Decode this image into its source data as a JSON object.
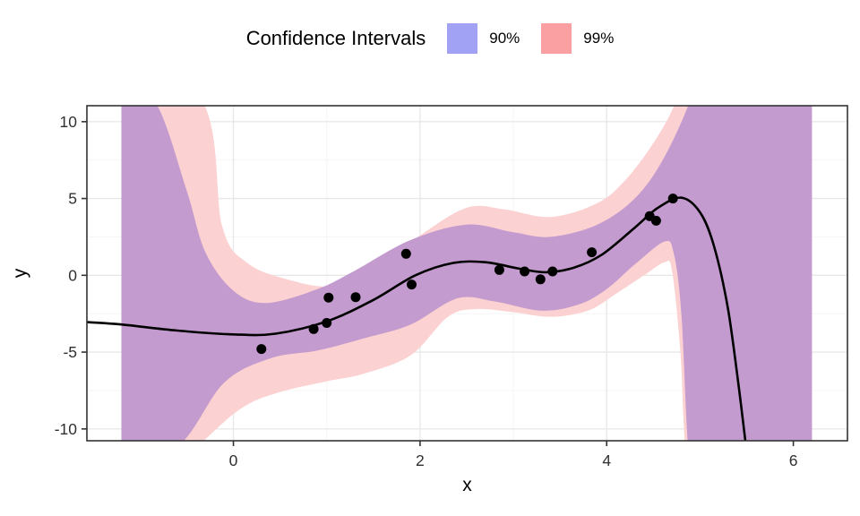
{
  "legend": {
    "title": "Confidence Intervals",
    "items": [
      {
        "label": "90%",
        "color": "#a2a2f5"
      },
      {
        "label": "99%",
        "color": "#fa9fa2"
      }
    ]
  },
  "colors": {
    "panel_border": "#333333",
    "grid_major": "#e8e8e8",
    "grid_minor": "#f4f4f4",
    "ribbon_99_fill": "#fbd1d1",
    "ribbon_90_fill": "#c49bcf",
    "curve": "#000000",
    "point": "#000000",
    "tick_mark": "#333333"
  },
  "chart_data": {
    "type": "line",
    "title": "Confidence Intervals",
    "xlabel": "x",
    "ylabel": "y",
    "xlim": [
      -1.57,
      6.58
    ],
    "ylim": [
      -10.77,
      11.04
    ],
    "x_ticks": [
      0,
      2,
      4,
      6
    ],
    "x_minor_ticks": [
      -1,
      1,
      3,
      5
    ],
    "y_ticks": [
      10,
      5,
      0,
      -5,
      -10
    ],
    "y_minor_ticks": [
      7.5,
      2.5,
      -2.5,
      -7.5
    ],
    "grid": true,
    "legend_position": "top",
    "points": [
      [
        0.3,
        -4.8
      ],
      [
        0.86,
        -3.5
      ],
      [
        1.0,
        -3.1
      ],
      [
        1.02,
        -1.45
      ],
      [
        1.31,
        -1.42
      ],
      [
        1.85,
        1.4
      ],
      [
        1.91,
        -0.6
      ],
      [
        2.85,
        0.35
      ],
      [
        3.12,
        0.25
      ],
      [
        3.29,
        -0.26
      ],
      [
        3.42,
        0.25
      ],
      [
        3.84,
        1.5
      ],
      [
        4.46,
        3.85
      ],
      [
        4.53,
        3.55
      ],
      [
        4.71,
        5.0
      ]
    ],
    "mean_curve": [
      [
        -1.57,
        -3.05
      ],
      [
        -1.2,
        -3.2
      ],
      [
        -0.6,
        -3.6
      ],
      [
        0.0,
        -3.85
      ],
      [
        0.45,
        -3.8
      ],
      [
        1.0,
        -3.0
      ],
      [
        1.5,
        -1.6
      ],
      [
        1.95,
        0.0
      ],
      [
        2.35,
        0.8
      ],
      [
        2.7,
        0.85
      ],
      [
        3.05,
        0.45
      ],
      [
        3.35,
        0.2
      ],
      [
        3.65,
        0.5
      ],
      [
        3.95,
        1.35
      ],
      [
        4.3,
        3.1
      ],
      [
        4.55,
        4.4
      ],
      [
        4.8,
        5.05
      ],
      [
        5.0,
        4.1
      ],
      [
        5.15,
        1.9
      ],
      [
        5.3,
        -2.2
      ],
      [
        5.42,
        -7.5
      ],
      [
        5.5,
        -11.5
      ]
    ],
    "band_90": {
      "label": "90%",
      "upper": [
        [
          -1.2,
          13.0
        ],
        [
          -0.82,
          11.1
        ],
        [
          -0.5,
          5.5
        ],
        [
          -0.3,
          1.5
        ],
        [
          0.0,
          -1.0
        ],
        [
          0.35,
          -1.8
        ],
        [
          0.9,
          -0.9
        ],
        [
          1.3,
          0.3
        ],
        [
          1.9,
          2.3
        ],
        [
          2.5,
          3.3
        ],
        [
          3.0,
          2.8
        ],
        [
          3.4,
          2.5
        ],
        [
          3.9,
          3.3
        ],
        [
          4.3,
          5.0
        ],
        [
          4.6,
          7.5
        ],
        [
          4.89,
          11.3
        ],
        [
          5.0,
          14.0
        ],
        [
          6.2,
          14.0
        ]
      ],
      "lower": [
        [
          -1.2,
          -14.0
        ],
        [
          -0.55,
          -10.9
        ],
        [
          -0.1,
          -7.0
        ],
        [
          0.4,
          -5.4
        ],
        [
          0.9,
          -4.9
        ],
        [
          1.4,
          -4.1
        ],
        [
          1.9,
          -3.2
        ],
        [
          2.4,
          -1.5
        ],
        [
          2.8,
          -1.7
        ],
        [
          3.3,
          -2.3
        ],
        [
          3.7,
          -1.9
        ],
        [
          4.0,
          -0.9
        ],
        [
          4.3,
          0.7
        ],
        [
          4.62,
          2.2
        ],
        [
          4.72,
          1.4
        ],
        [
          4.8,
          -2.5
        ],
        [
          4.87,
          -11.0
        ],
        [
          4.95,
          -14.0
        ],
        [
          6.2,
          -14.0
        ]
      ]
    },
    "band_99": {
      "label": "99%",
      "upper": [
        [
          -1.2,
          16.0
        ],
        [
          -0.32,
          11.2
        ],
        [
          -0.12,
          3.2
        ],
        [
          0.15,
          0.8
        ],
        [
          0.6,
          -0.3
        ],
        [
          1.05,
          -0.7
        ],
        [
          1.5,
          0.4
        ],
        [
          2.0,
          2.6
        ],
        [
          2.5,
          4.4
        ],
        [
          2.9,
          4.3
        ],
        [
          3.4,
          3.8
        ],
        [
          3.9,
          4.7
        ],
        [
          4.2,
          6.2
        ],
        [
          4.5,
          8.6
        ],
        [
          4.73,
          11.2
        ],
        [
          4.82,
          14.0
        ],
        [
          6.2,
          16.0
        ]
      ],
      "lower": [
        [
          -1.2,
          -16.0
        ],
        [
          -0.34,
          -10.9
        ],
        [
          0.1,
          -8.6
        ],
        [
          0.5,
          -7.6
        ],
        [
          1.0,
          -6.9
        ],
        [
          1.4,
          -6.4
        ],
        [
          1.9,
          -5.2
        ],
        [
          2.3,
          -2.7
        ],
        [
          2.6,
          -2.2
        ],
        [
          3.0,
          -2.4
        ],
        [
          3.4,
          -2.7
        ],
        [
          3.8,
          -2.3
        ],
        [
          4.1,
          -1.2
        ],
        [
          4.4,
          0.0
        ],
        [
          4.62,
          0.85
        ],
        [
          4.7,
          0.3
        ],
        [
          4.79,
          -5.0
        ],
        [
          4.84,
          -11.0
        ],
        [
          4.95,
          -16.0
        ],
        [
          6.2,
          -16.0
        ]
      ]
    }
  }
}
